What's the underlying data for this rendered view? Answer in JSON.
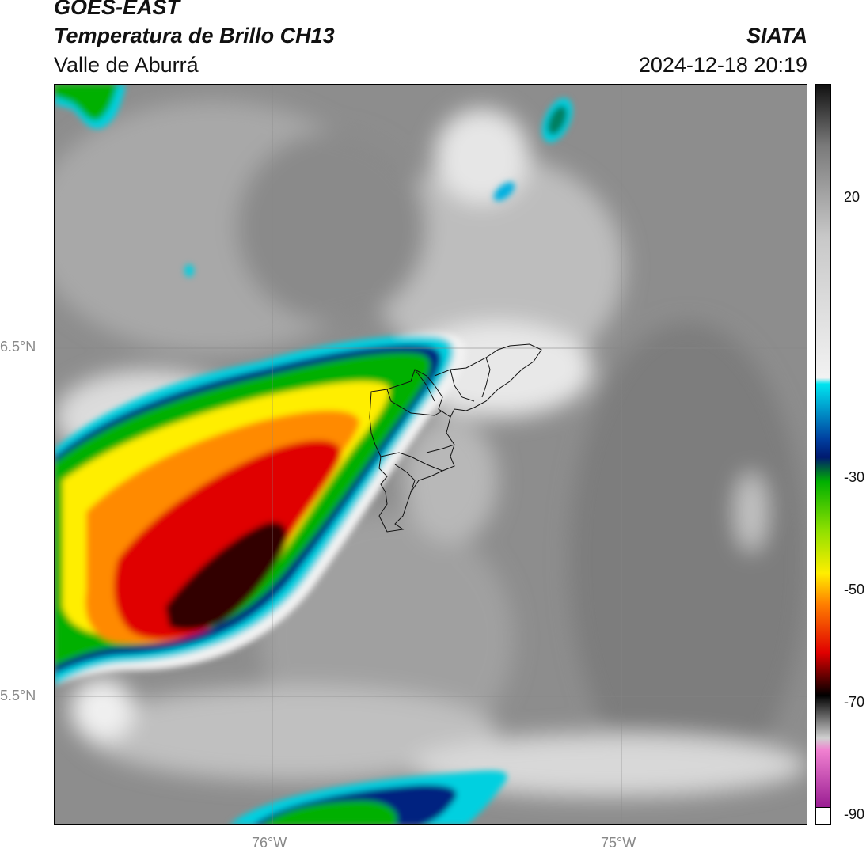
{
  "header": {
    "line1": "GOES-EAST",
    "line2": "Temperatura de Brillo CH13",
    "line3": "Valle de Aburrá",
    "org": "SIATA",
    "datetime": "2024-12-18 20:19"
  },
  "axes": {
    "lat_labels": [
      "6.5°N",
      "5.5°N"
    ],
    "lon_labels": [
      "76°W",
      "75°W"
    ]
  },
  "colorbar": {
    "ticks": [
      "20",
      "-30",
      "-50",
      "-70",
      "-90"
    ],
    "stops": [
      {
        "value": 30,
        "color": "#111111"
      },
      {
        "value": 20,
        "color": "#7a7a7a"
      },
      {
        "value": 5,
        "color": "#c8c8c8"
      },
      {
        "value": -18,
        "color": "#f2f2f2"
      },
      {
        "value": -19,
        "color": "#00e5f0"
      },
      {
        "value": -28,
        "color": "#0040a0"
      },
      {
        "value": -31,
        "color": "#001a70"
      },
      {
        "value": -35,
        "color": "#00b000"
      },
      {
        "value": -43,
        "color": "#90e000"
      },
      {
        "value": -50,
        "color": "#ffee00"
      },
      {
        "value": -55,
        "color": "#ff8000"
      },
      {
        "value": -63,
        "color": "#e00000"
      },
      {
        "value": -68,
        "color": "#400000"
      },
      {
        "value": -70,
        "color": "#000000"
      },
      {
        "value": -77,
        "color": "#d0d0d0"
      },
      {
        "value": -79,
        "color": "#f080d0"
      },
      {
        "value": -91,
        "color": "#800080"
      }
    ]
  }
}
